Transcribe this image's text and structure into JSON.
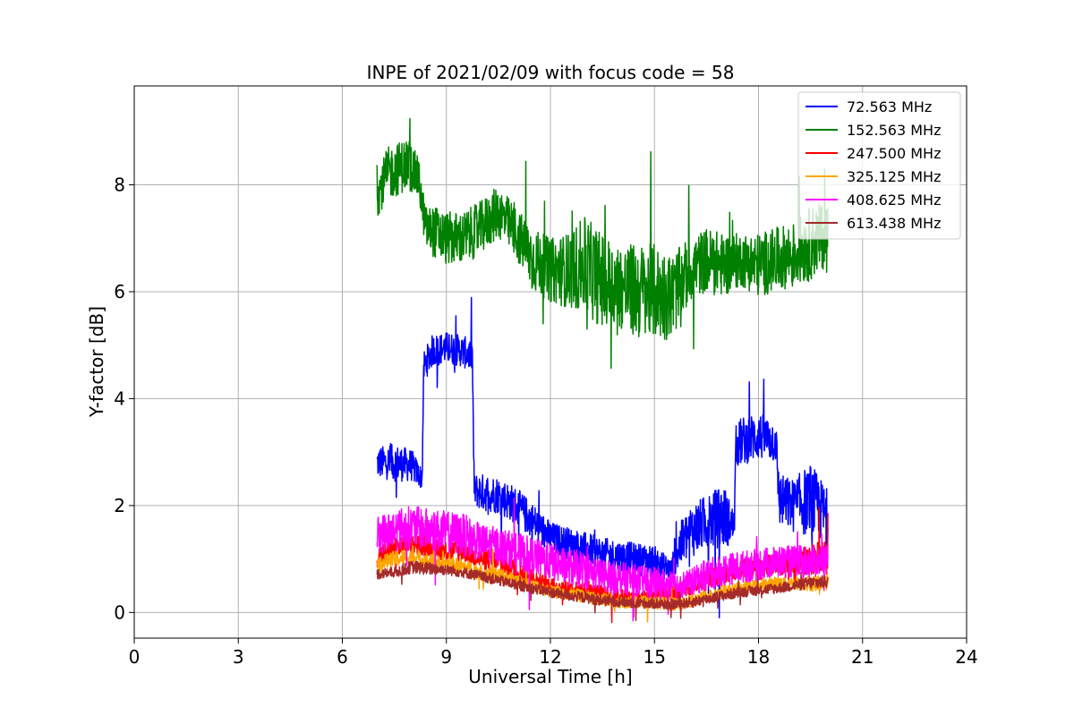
{
  "chart_data": {
    "type": "line",
    "title": "INPE of 2021/02/09 with focus code = 58",
    "xlabel": "Universal Time [h]",
    "ylabel": "Y-factor [dB]",
    "xlim": [
      0,
      24
    ],
    "ylim": [
      -0.48,
      9.85
    ],
    "xticks": [
      0,
      3,
      6,
      9,
      12,
      15,
      18,
      21,
      24
    ],
    "yticks": [
      0,
      2,
      4,
      6,
      8
    ],
    "grid": true,
    "legend_position": "top-right",
    "series": [
      {
        "name": " 72.563 MHz",
        "color": "#0000ff",
        "x": [
          7.0,
          7.5,
          8.0,
          8.3,
          8.35,
          8.6,
          9.0,
          9.4,
          9.75,
          9.8,
          10.0,
          10.5,
          11.0,
          11.5,
          12.0,
          12.5,
          13.0,
          13.5,
          14.0,
          14.5,
          15.0,
          15.5,
          15.6,
          16.0,
          16.5,
          17.0,
          17.3,
          17.35,
          17.5,
          18.0,
          18.5,
          18.6,
          19.0,
          19.5,
          20.0
        ],
        "y": [
          2.8,
          2.8,
          2.75,
          2.5,
          4.6,
          4.9,
          4.95,
          4.9,
          4.8,
          2.3,
          2.25,
          2.2,
          2.0,
          1.7,
          1.4,
          1.3,
          1.2,
          1.1,
          1.05,
          1.0,
          0.95,
          0.8,
          1.1,
          1.5,
          1.7,
          1.8,
          1.6,
          3.1,
          3.2,
          3.3,
          3.2,
          2.1,
          2.0,
          2.1,
          1.8
        ],
        "amplitude": [
          0.3,
          0.35,
          0.3,
          0.2,
          0.3,
          0.3,
          0.3,
          0.3,
          0.3,
          0.3,
          0.35,
          0.35,
          0.35,
          0.35,
          0.3,
          0.3,
          0.3,
          0.3,
          0.3,
          0.3,
          0.3,
          0.2,
          0.4,
          0.5,
          0.5,
          0.6,
          0.3,
          0.4,
          0.45,
          0.45,
          0.4,
          0.5,
          0.5,
          0.7,
          0.5
        ]
      },
      {
        "name": "152.563 MHz",
        "color": "#008000",
        "x": [
          7.0,
          7.3,
          7.6,
          7.9,
          8.2,
          8.4,
          8.7,
          9.0,
          9.5,
          10.0,
          10.5,
          11.0,
          11.5,
          12.0,
          12.5,
          13.0,
          13.5,
          14.0,
          14.5,
          15.0,
          15.5,
          16.0,
          16.5,
          17.0,
          17.5,
          18.0,
          18.5,
          19.0,
          19.5,
          20.0
        ],
        "y": [
          7.8,
          8.2,
          8.3,
          8.4,
          8.1,
          7.2,
          7.1,
          7.0,
          7.0,
          7.2,
          7.5,
          7.1,
          6.6,
          6.4,
          6.4,
          6.5,
          6.2,
          6.1,
          6.0,
          6.0,
          5.9,
          6.4,
          6.6,
          6.5,
          6.6,
          6.5,
          6.6,
          6.7,
          6.9,
          7.1
        ],
        "amplitude": [
          0.4,
          0.5,
          0.5,
          0.5,
          0.4,
          0.4,
          0.5,
          0.5,
          0.5,
          0.5,
          0.5,
          0.5,
          0.6,
          0.6,
          0.7,
          0.9,
          0.9,
          0.8,
          0.9,
          0.9,
          0.8,
          0.6,
          0.6,
          0.6,
          0.5,
          0.6,
          0.6,
          0.6,
          0.7,
          0.6
        ]
      },
      {
        "name": "247.500 MHz",
        "color": "#ff0000",
        "x": [
          7.0,
          7.5,
          8.0,
          8.5,
          9.0,
          9.5,
          10.0,
          10.5,
          11.0,
          11.5,
          12.0,
          12.5,
          13.0,
          13.5,
          14.0,
          14.5,
          15.0,
          15.5,
          16.0,
          16.5,
          17.0,
          17.5,
          18.0,
          18.5,
          19.0,
          19.5,
          20.0
        ],
        "y": [
          1.05,
          1.2,
          1.3,
          1.25,
          1.15,
          1.15,
          1.0,
          0.95,
          0.8,
          0.65,
          0.5,
          0.45,
          0.4,
          0.35,
          0.3,
          0.25,
          0.3,
          0.35,
          0.45,
          0.6,
          0.75,
          0.85,
          0.85,
          0.9,
          0.9,
          1.0,
          1.1
        ],
        "amplitude": [
          0.2,
          0.2,
          0.2,
          0.2,
          0.2,
          0.2,
          0.2,
          0.2,
          0.2,
          0.15,
          0.15,
          0.15,
          0.15,
          0.15,
          0.15,
          0.15,
          0.15,
          0.15,
          0.15,
          0.2,
          0.2,
          0.2,
          0.2,
          0.2,
          0.2,
          0.3,
          0.3
        ]
      },
      {
        "name": "325.125 MHz",
        "color": "#ffa500",
        "x": [
          7.0,
          7.5,
          8.0,
          8.5,
          9.0,
          9.5,
          10.0,
          10.5,
          11.0,
          11.5,
          12.0,
          12.5,
          13.0,
          13.5,
          14.0,
          14.5,
          15.0,
          15.5,
          16.0,
          16.5,
          17.0,
          17.5,
          18.0,
          18.5,
          19.0,
          19.5,
          20.0
        ],
        "y": [
          0.9,
          1.0,
          1.05,
          0.95,
          0.9,
          0.85,
          0.75,
          0.7,
          0.6,
          0.5,
          0.4,
          0.35,
          0.3,
          0.25,
          0.2,
          0.2,
          0.2,
          0.15,
          0.2,
          0.3,
          0.4,
          0.45,
          0.5,
          0.55,
          0.55,
          0.55,
          0.55
        ],
        "amplitude": [
          0.15,
          0.15,
          0.15,
          0.15,
          0.15,
          0.15,
          0.15,
          0.15,
          0.12,
          0.12,
          0.12,
          0.12,
          0.12,
          0.12,
          0.12,
          0.12,
          0.12,
          0.12,
          0.12,
          0.12,
          0.12,
          0.12,
          0.12,
          0.12,
          0.12,
          0.15,
          0.15
        ]
      },
      {
        "name": "408.625 MHz",
        "color": "#ff00ff",
        "x": [
          7.0,
          7.5,
          8.0,
          8.5,
          9.0,
          9.5,
          10.0,
          10.5,
          11.0,
          11.5,
          12.0,
          12.5,
          13.0,
          13.5,
          14.0,
          14.5,
          15.0,
          15.5,
          16.0,
          16.5,
          17.0,
          17.5,
          18.0,
          18.5,
          19.0,
          19.5,
          20.0
        ],
        "y": [
          1.45,
          1.55,
          1.6,
          1.55,
          1.5,
          1.45,
          1.3,
          1.25,
          1.15,
          1.05,
          0.95,
          0.85,
          0.8,
          0.7,
          0.65,
          0.6,
          0.55,
          0.5,
          0.55,
          0.7,
          0.8,
          0.85,
          0.9,
          0.95,
          0.95,
          0.95,
          1.0
        ],
        "amplitude": [
          0.35,
          0.4,
          0.4,
          0.4,
          0.4,
          0.4,
          0.35,
          0.35,
          0.35,
          0.35,
          0.35,
          0.35,
          0.35,
          0.3,
          0.3,
          0.3,
          0.3,
          0.25,
          0.25,
          0.3,
          0.3,
          0.3,
          0.3,
          0.3,
          0.3,
          0.3,
          0.3
        ]
      },
      {
        "name": "613.438 MHz",
        "color": "#a52a2a",
        "x": [
          7.0,
          7.5,
          8.0,
          8.5,
          9.0,
          9.5,
          10.0,
          10.5,
          11.0,
          11.5,
          12.0,
          12.5,
          13.0,
          13.5,
          14.0,
          14.5,
          15.0,
          15.5,
          16.0,
          16.5,
          17.0,
          17.5,
          18.0,
          18.5,
          19.0,
          19.5,
          20.0
        ],
        "y": [
          0.72,
          0.75,
          0.85,
          0.82,
          0.8,
          0.75,
          0.68,
          0.6,
          0.52,
          0.45,
          0.38,
          0.32,
          0.28,
          0.22,
          0.2,
          0.18,
          0.17,
          0.15,
          0.18,
          0.25,
          0.32,
          0.38,
          0.42,
          0.45,
          0.5,
          0.55,
          0.58
        ],
        "amplitude": [
          0.1,
          0.1,
          0.12,
          0.12,
          0.1,
          0.1,
          0.1,
          0.1,
          0.1,
          0.1,
          0.1,
          0.1,
          0.1,
          0.1,
          0.1,
          0.1,
          0.1,
          0.1,
          0.1,
          0.1,
          0.1,
          0.1,
          0.1,
          0.1,
          0.1,
          0.12,
          0.12
        ]
      }
    ]
  }
}
